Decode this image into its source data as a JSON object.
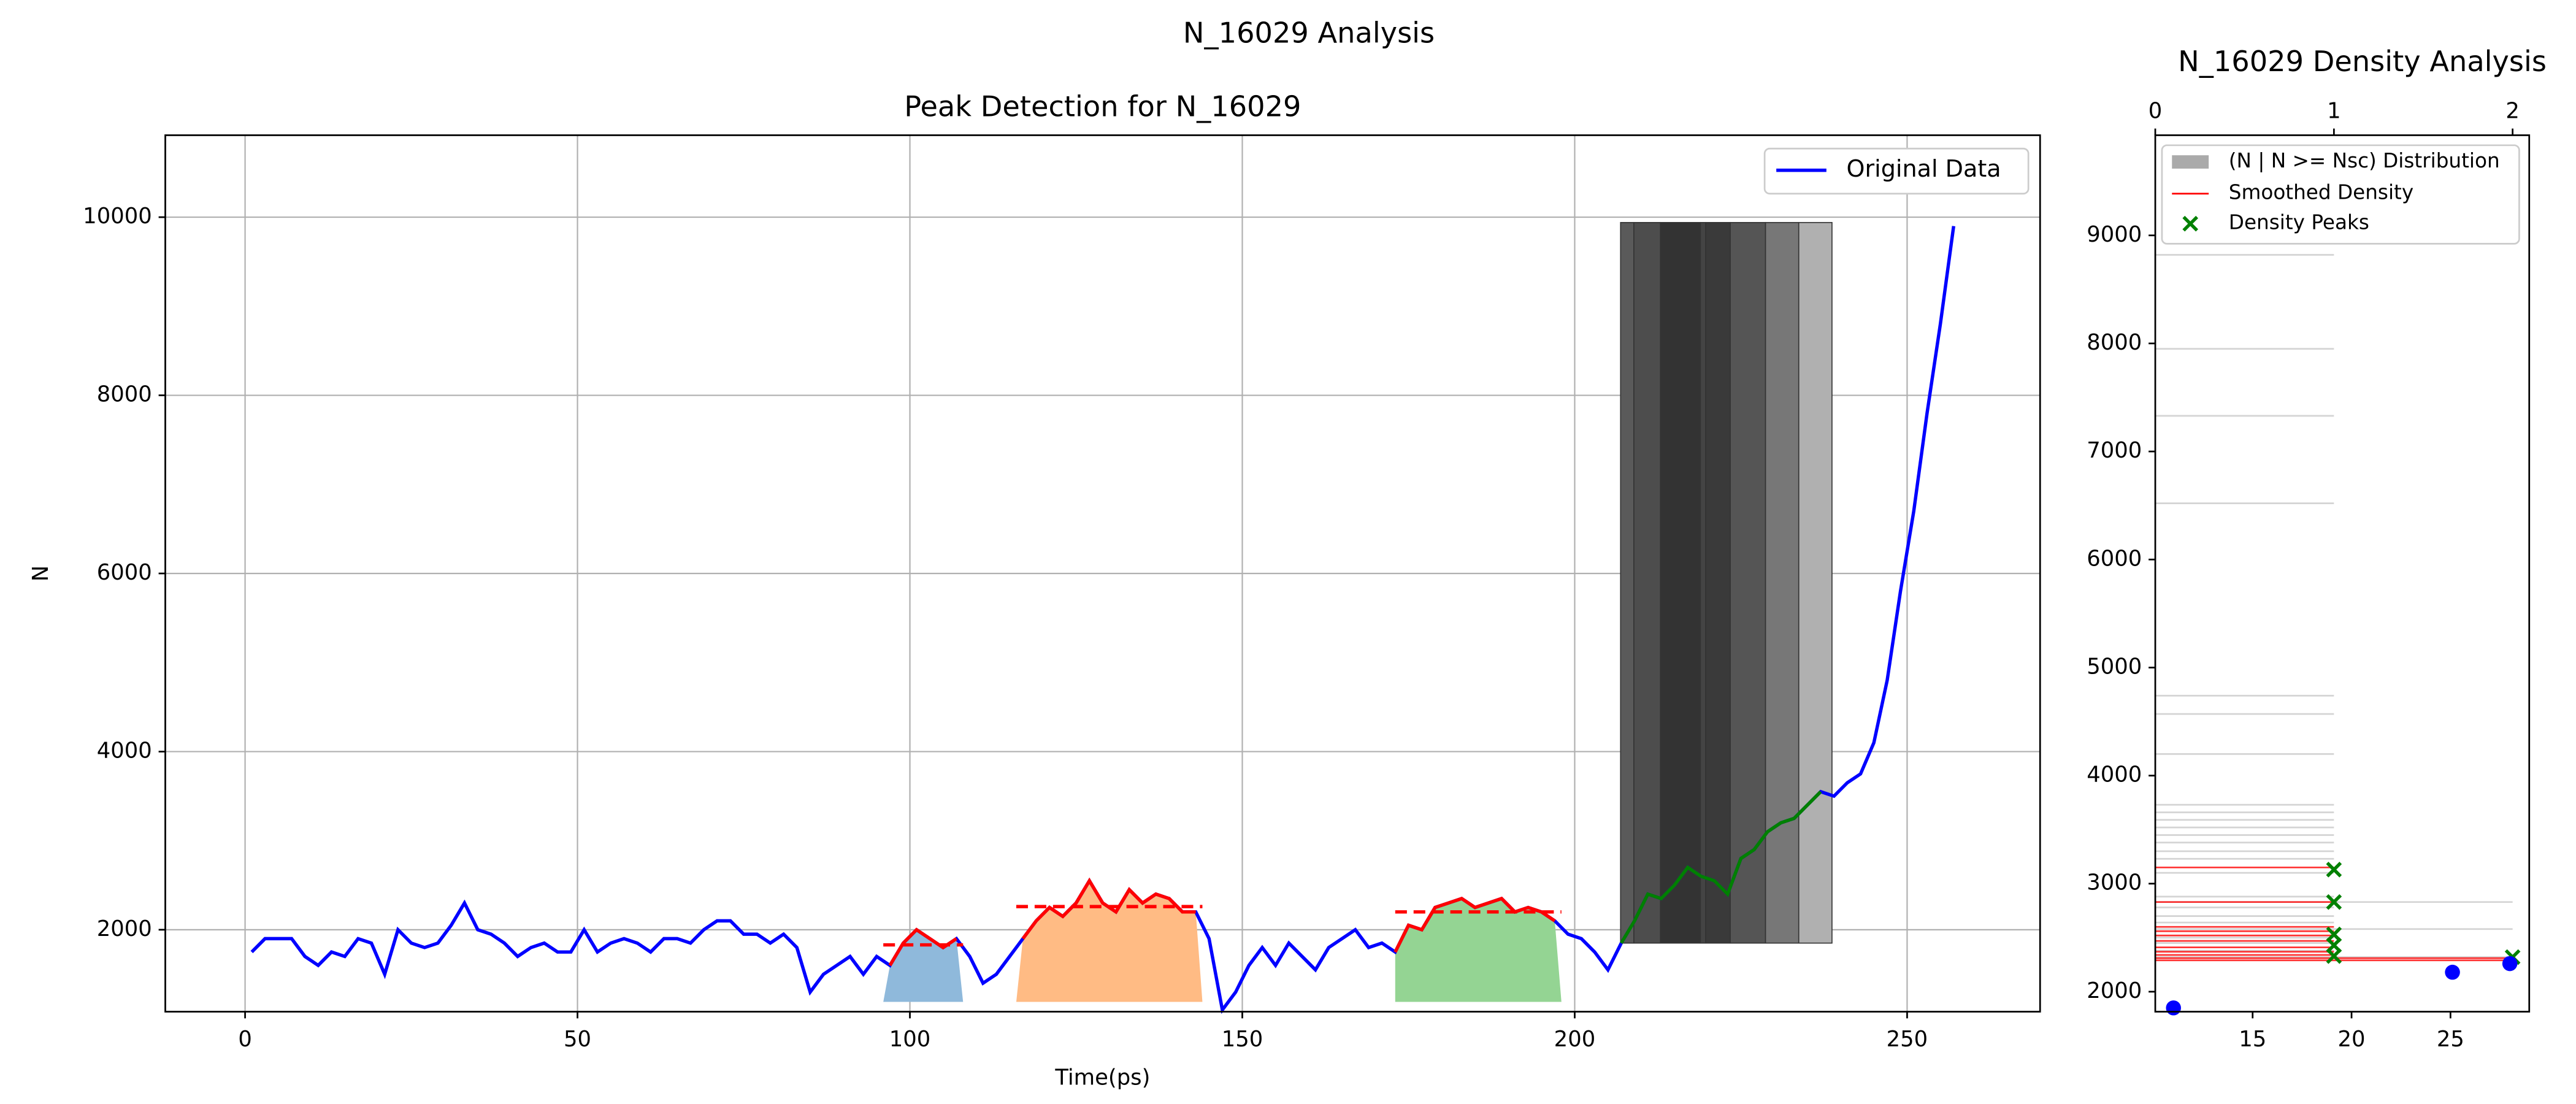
{
  "title": "N_16029 Analysis",
  "chart_data": [
    {
      "type": "line",
      "title": "Peak Detection for N_16029",
      "x_label": "Time(ps)",
      "y_label": "N",
      "xlim": [
        -12,
        270
      ],
      "ylim": [
        1080,
        10920
      ],
      "xticks": [
        0,
        50,
        100,
        150,
        200,
        250
      ],
      "yticks": [
        2000,
        4000,
        6000,
        8000,
        10000
      ],
      "grid": true,
      "legend": "upper right",
      "series": [
        {
          "name": "Original Data",
          "color": "#0000ff",
          "x": [
            1,
            3,
            5,
            7,
            9,
            11,
            13,
            15,
            17,
            19,
            21,
            23,
            25,
            27,
            29,
            31,
            33,
            35,
            37,
            39,
            41,
            43,
            45,
            47,
            49,
            51,
            53,
            55,
            57,
            59,
            61,
            63,
            65,
            67,
            69,
            71,
            73,
            75,
            77,
            79,
            81,
            83,
            85,
            87,
            89,
            91,
            93,
            95,
            97,
            99,
            101,
            103,
            105,
            107,
            109,
            111,
            113,
            115,
            117,
            119,
            121,
            123,
            125,
            127,
            129,
            131,
            133,
            135,
            137,
            139,
            141,
            143,
            145,
            147,
            149,
            151,
            153,
            155,
            157,
            159,
            161,
            163,
            165,
            167,
            169,
            171,
            173,
            175,
            177,
            179,
            181,
            183,
            185,
            187,
            189,
            191,
            193,
            195,
            197,
            199,
            201,
            203,
            205,
            207,
            209,
            211,
            213,
            215,
            217,
            219,
            221,
            223,
            225,
            227,
            229,
            231,
            233,
            235,
            237,
            239,
            241,
            243,
            245,
            247,
            249,
            251,
            253,
            255,
            257
          ],
          "values": [
            1750,
            1900,
            1900,
            1900,
            1700,
            1600,
            1750,
            1700,
            1900,
            1850,
            1500,
            2000,
            1850,
            1800,
            1850,
            2050,
            2300,
            2000,
            1950,
            1850,
            1700,
            1800,
            1850,
            1750,
            1750,
            2000,
            1750,
            1850,
            1900,
            1850,
            1750,
            1900,
            1900,
            1850,
            2000,
            2100,
            2100,
            1950,
            1950,
            1850,
            1950,
            1800,
            1300,
            1500,
            1600,
            1700,
            1500,
            1700,
            1600,
            1850,
            2000,
            1900,
            1800,
            1900,
            1700,
            1400,
            1500,
            1700,
            1900,
            2100,
            2250,
            2150,
            2300,
            2550,
            2300,
            2200,
            2450,
            2300,
            2400,
            2350,
            2200,
            2200,
            1900,
            1100,
            1300,
            1600,
            1800,
            1600,
            1850,
            1700,
            1550,
            1800,
            1900,
            2000,
            1800,
            1850,
            1750,
            2050,
            2000,
            2250,
            2300,
            2350,
            2250,
            2300,
            2350,
            2200,
            2250,
            2200,
            2100,
            1950,
            1900,
            1750,
            1550,
            1850,
            2100,
            2400,
            2350,
            2500,
            2700,
            2600,
            2550,
            2400,
            2800,
            2900,
            3100,
            3200,
            3250,
            3400,
            3550,
            3500,
            3650,
            3750,
            4100,
            4800,
            5800,
            6700,
            7800,
            8800,
            9900
          ]
        }
      ],
      "peaks": [
        {
          "x": [
            96,
            108
          ],
          "level": 1830,
          "line_color": "#ff0000",
          "fill_color": "#8fb9db"
        },
        {
          "x": [
            116,
            144
          ],
          "level": 2260,
          "line_color": "#ff0000",
          "fill_color": "#ffbb84"
        },
        {
          "x": [
            173,
            198
          ],
          "level": 2200,
          "line_color": "#ff0000",
          "fill_color": "#94d493"
        }
      ],
      "fill_base": 1190,
      "growth": {
        "x": [
          207,
          237
        ],
        "color": "#008000"
      },
      "bars": {
        "base": 1850,
        "top": 9940,
        "edges": [
          206.9,
          208.9,
          212.9,
          218.9,
          219.7,
          223.4,
          228.7,
          233.7,
          238.7
        ],
        "colors": [
          "#5a5a5a",
          "#4d4d4d",
          "#333333",
          "#444444",
          "#3a3a3a",
          "#555555",
          "#777777",
          "#b0b0b0"
        ]
      }
    },
    {
      "type": "density",
      "title": "N_16029 Density Analysis",
      "xlim": [
        0,
        2.093
      ],
      "xticks": [
        0,
        1,
        2
      ],
      "x2lim": [
        10.08,
        28.98
      ],
      "x2ticks": [
        15,
        20,
        25
      ],
      "ylim": [
        1815,
        9927
      ],
      "yticks": [
        2000,
        3000,
        4000,
        5000,
        6000,
        7000,
        8000,
        9000
      ],
      "legend": "upper left",
      "distribution": {
        "name": "(N | N >= Nsc) Distribution",
        "color": "#aaaaaa",
        "y": [
          8820,
          7950,
          7330,
          6520,
          4740,
          4570,
          4200,
          3730,
          3660,
          3590,
          3520,
          3450,
          3380,
          3300,
          3230,
          3100,
          2880,
          2830,
          2780,
          2700,
          2640,
          2580,
          2500,
          2450,
          2380,
          2320
        ],
        "values": [
          1,
          1,
          1,
          1,
          1,
          1,
          1,
          1,
          1,
          1,
          1,
          1,
          1,
          1,
          1,
          1,
          1,
          2,
          1,
          1,
          1,
          2,
          1,
          1,
          1,
          2
        ]
      },
      "density": {
        "name": "Smoothed Density",
        "color": "#ff0000",
        "y": [
          3150,
          2830,
          2600,
          2560,
          2520,
          2470,
          2410,
          2370,
          2340,
          2310,
          2290
        ],
        "values": [
          1,
          1,
          1,
          1,
          1,
          1,
          1,
          1,
          1,
          2,
          2
        ]
      },
      "peaks": {
        "name": "Density Peaks",
        "color": "#008000",
        "x": [
          1,
          1,
          1,
          1,
          1,
          2
        ],
        "y": [
          3130,
          2830,
          2530,
          2430,
          2330,
          2320
        ]
      },
      "points": {
        "color": "#0000ff",
        "x": [
          11.0,
          25.1,
          28.0
        ],
        "y": [
          1850,
          2180,
          2260
        ]
      }
    }
  ]
}
